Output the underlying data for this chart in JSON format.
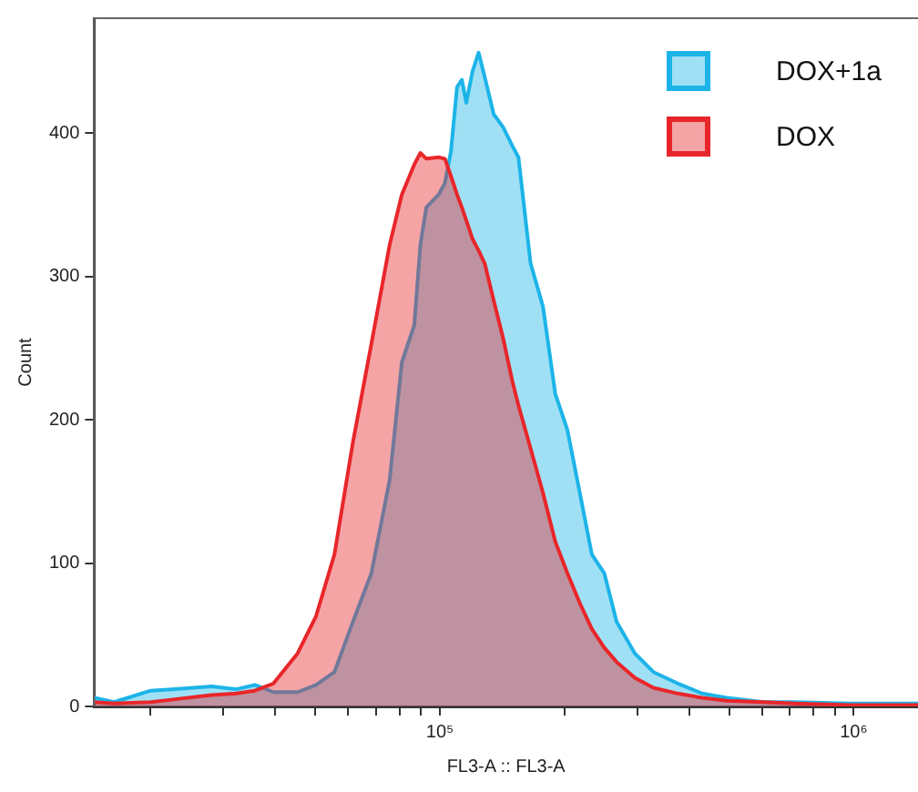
{
  "chart_data": {
    "type": "area",
    "xlabel": "FL3-A :: FL3-A",
    "ylabel": "Count",
    "log": "x",
    "grid": false,
    "legend": "top right",
    "marker": "none",
    "x": [
      14600,
      16300,
      20000,
      22900,
      28100,
      32200,
      35700,
      39600,
      45300,
      50200,
      55600,
      61600,
      68300,
      75600,
      80900,
      86700,
      89700,
      92700,
      99300,
      102800,
      106300,
      110000,
      113000,
      115800,
      119900,
      124000,
      128300,
      134900,
      142100,
      149600,
      154800,
      165600,
      177400,
      190000,
      203200,
      217800,
      232900,
      249500,
      267300,
      295800,
      328000,
      375800,
      430500,
      493300,
      605300,
      718100,
      977200,
      1430000
    ],
    "series": [
      {
        "name": "DOX+1a",
        "color": "#1cb4e8",
        "values": [
          6,
          3,
          11,
          12,
          14,
          12,
          15,
          10,
          10,
          15,
          24,
          59,
          93,
          158,
          240,
          266,
          322,
          348,
          357,
          365,
          387,
          432,
          437,
          421,
          443,
          456,
          439,
          413,
          404,
          391,
          383,
          309,
          279,
          218,
          193,
          149,
          106,
          93,
          59,
          37,
          24,
          16,
          9,
          6,
          3,
          3,
          2,
          2
        ]
      },
      {
        "name": "DOX",
        "color": "#e8262a",
        "values": [
          3,
          2,
          3,
          5,
          8,
          9,
          11,
          16,
          37,
          63,
          106,
          184,
          253,
          322,
          357,
          378,
          386,
          382,
          383,
          382,
          370,
          357,
          348,
          339,
          326,
          318,
          309,
          283,
          257,
          227,
          210,
          180,
          149,
          115,
          93,
          72,
          54,
          41,
          31,
          20,
          13,
          9,
          6,
          4,
          3,
          2,
          1,
          1
        ]
      }
    ],
    "xlim": [
      14600,
      1430000
    ],
    "xticks": [
      {
        "value": 20000,
        "label": null
      },
      {
        "value": 30000,
        "label": null
      },
      {
        "value": 40000,
        "label": null
      },
      {
        "value": 50000,
        "label": null
      },
      {
        "value": 60000,
        "label": null
      },
      {
        "value": 70000,
        "label": null
      },
      {
        "value": 80000,
        "label": null
      },
      {
        "value": 90000,
        "label": null
      },
      {
        "value": 100000,
        "label": "10⁵"
      },
      {
        "value": 200000,
        "label": null
      },
      {
        "value": 300000,
        "label": null
      },
      {
        "value": 400000,
        "label": null
      },
      {
        "value": 500000,
        "label": null
      },
      {
        "value": 600000,
        "label": null
      },
      {
        "value": 700000,
        "label": null
      },
      {
        "value": 800000,
        "label": null
      },
      {
        "value": 900000,
        "label": null
      },
      {
        "value": 1000000,
        "label": "10⁶"
      }
    ],
    "ylim": [
      0,
      480
    ],
    "yticks": [
      0,
      100,
      200,
      300,
      400
    ]
  }
}
